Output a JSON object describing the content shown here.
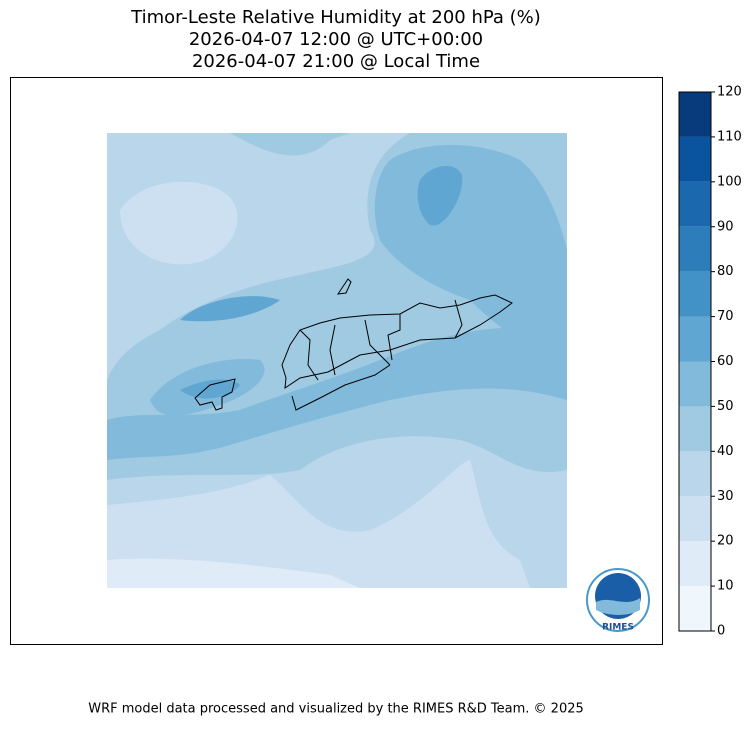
{
  "title": [
    "Timor-Leste Relative Humidity at 200 hPa (%)",
    "2026-04-07 12:00 @ UTC+00:00",
    "2026-04-07 21:00 @ Local Time"
  ],
  "colorbar": {
    "ticks": [
      0,
      10,
      20,
      30,
      40,
      50,
      60,
      70,
      80,
      90,
      100,
      110,
      120
    ],
    "colors": [
      "#eff6fc",
      "#dfebf7",
      "#cde0f1",
      "#b9d6ea",
      "#9fcae1",
      "#81badb",
      "#60a6d2",
      "#4291c7",
      "#2d7dbb",
      "#1b68ae",
      "#0a539e",
      "#083b7c"
    ]
  },
  "logo": "RIMES",
  "footer": "WRF model data processed and visualized by the RIMES R&D Team. © 2025"
}
